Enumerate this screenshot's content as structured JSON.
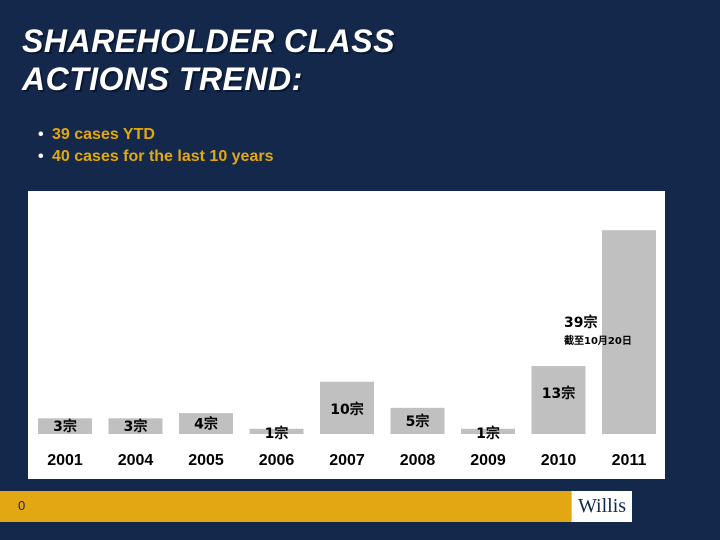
{
  "title": {
    "line1": "SHAREHOLDER CLASS",
    "line2": "ACTIONS TREND:"
  },
  "bullets": [
    "39 cases YTD",
    "40 cases for the last 10 years"
  ],
  "footer": {
    "page_number": "0",
    "logo_text": "Willis"
  },
  "colors": {
    "background": "#13284b",
    "accent": "#e3a714",
    "bar": "#c0c0c0"
  },
  "chart_data": {
    "type": "bar",
    "categories": [
      "2001",
      "2004",
      "2005",
      "2006",
      "2007",
      "2008",
      "2009",
      "2010",
      "2011"
    ],
    "values": [
      3,
      3,
      4,
      1,
      10,
      5,
      1,
      13,
      39
    ],
    "data_labels": [
      "3宗",
      "3宗",
      "4宗",
      "1宗",
      "10宗",
      "5宗",
      "1宗",
      "13宗",
      "39宗"
    ],
    "annotation": "截至10月20日",
    "annotation_category": "2011",
    "ylim": [
      0,
      40
    ],
    "grid": false
  }
}
